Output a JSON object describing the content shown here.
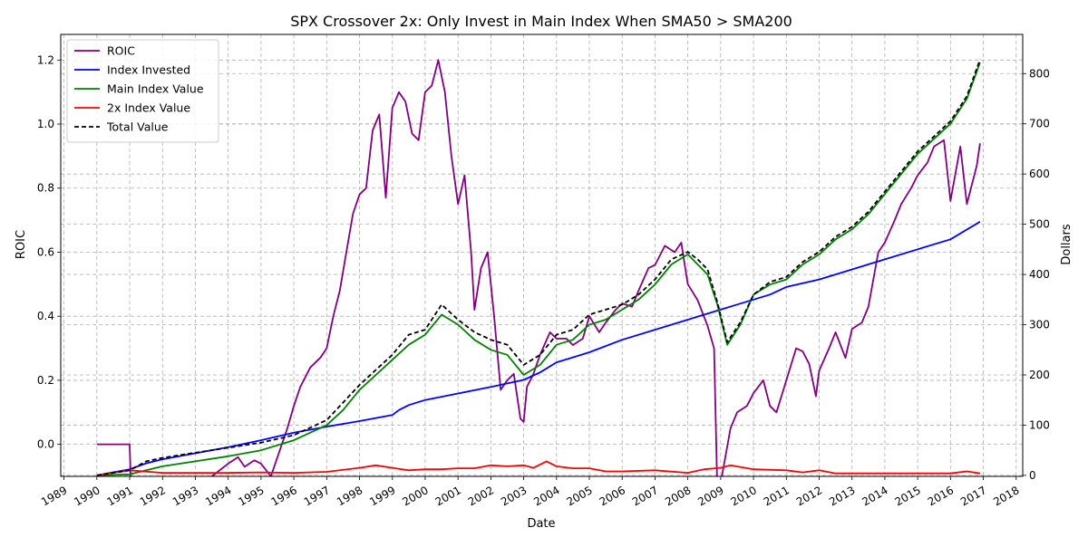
{
  "chart_data": {
    "type": "line",
    "title": "SPX Crossover 2x: Only Invest in Main Index When SMA50 > SMA200",
    "xlabel": "Date",
    "ylabel_left": "ROIC",
    "ylabel_right": "Dollars",
    "x_ticks": [
      "1989",
      "1990",
      "1991",
      "1992",
      "1993",
      "1994",
      "1995",
      "1996",
      "1997",
      "1998",
      "1999",
      "2000",
      "2001",
      "2002",
      "2003",
      "2004",
      "2005",
      "2006",
      "2007",
      "2008",
      "2009",
      "2010",
      "2011",
      "2012",
      "2013",
      "2014",
      "2015",
      "2016",
      "2017",
      "2018"
    ],
    "x_range": [
      1988.9,
      2018.2
    ],
    "y_left_ticks": [
      "0.0",
      "0.2",
      "0.4",
      "0.6",
      "0.8",
      "1.0",
      "1.2"
    ],
    "y_left_range": [
      -0.1,
      1.28
    ],
    "y_right_ticks": [
      "0",
      "100",
      "200",
      "300",
      "400",
      "500",
      "600",
      "700",
      "800"
    ],
    "y_right_range": [
      -2,
      878
    ],
    "grid": true,
    "legend_position": "top-left",
    "series": [
      {
        "name": "ROIC",
        "axis": "left",
        "color": "#800080",
        "dash": false,
        "x": [
          1990.0,
          1991.0,
          1991.05,
          1992.0,
          1993.0,
          1993.5,
          1994.0,
          1994.3,
          1994.5,
          1994.8,
          1995.0,
          1995.3,
          1995.5,
          1995.8,
          1996.0,
          1996.2,
          1996.5,
          1996.8,
          1997.0,
          1997.2,
          1997.4,
          1997.6,
          1997.8,
          1998.0,
          1998.2,
          1998.4,
          1998.6,
          1998.8,
          1999.0,
          1999.2,
          1999.4,
          1999.6,
          1999.8,
          2000.0,
          2000.2,
          2000.4,
          2000.6,
          2000.8,
          2001.0,
          2001.2,
          2001.4,
          2001.5,
          2001.7,
          2001.9,
          2002.1,
          2002.3,
          2002.5,
          2002.7,
          2002.9,
          2003.0,
          2003.1,
          2003.3,
          2003.5,
          2003.8,
          2004.0,
          2004.3,
          2004.5,
          2004.8,
          2005.0,
          2005.3,
          2005.5,
          2005.8,
          2006.0,
          2006.3,
          2006.5,
          2006.8,
          2007.0,
          2007.3,
          2007.6,
          2007.8,
          2008.0,
          2008.3,
          2008.6,
          2008.8,
          2008.9,
          2009.0,
          2009.3,
          2009.5,
          2009.8,
          2010.0,
          2010.3,
          2010.5,
          2010.7,
          2011.0,
          2011.3,
          2011.5,
          2011.7,
          2011.9,
          2012.0,
          2012.3,
          2012.5,
          2012.8,
          2013.0,
          2013.3,
          2013.5,
          2013.8,
          2014.0,
          2014.3,
          2014.5,
          2014.8,
          2015.0,
          2015.3,
          2015.5,
          2015.8,
          2016.0,
          2016.3,
          2016.5,
          2016.8,
          2016.9
        ],
        "y": [
          0.0,
          0.0,
          -0.18,
          -0.15,
          -0.13,
          -0.1,
          -0.06,
          -0.04,
          -0.07,
          -0.05,
          -0.06,
          -0.1,
          -0.04,
          0.05,
          0.12,
          0.18,
          0.24,
          0.27,
          0.3,
          0.4,
          0.48,
          0.6,
          0.72,
          0.78,
          0.8,
          0.98,
          1.03,
          0.77,
          1.05,
          1.1,
          1.07,
          0.97,
          0.95,
          1.1,
          1.12,
          1.2,
          1.1,
          0.9,
          0.75,
          0.84,
          0.6,
          0.42,
          0.55,
          0.6,
          0.4,
          0.17,
          0.2,
          0.22,
          0.08,
          0.07,
          0.18,
          0.22,
          0.28,
          0.35,
          0.33,
          0.33,
          0.31,
          0.33,
          0.4,
          0.35,
          0.38,
          0.42,
          0.44,
          0.43,
          0.48,
          0.55,
          0.56,
          0.62,
          0.6,
          0.63,
          0.5,
          0.45,
          0.37,
          0.3,
          -0.15,
          -0.12,
          0.05,
          0.1,
          0.12,
          0.16,
          0.2,
          0.12,
          0.1,
          0.2,
          0.3,
          0.29,
          0.25,
          0.15,
          0.23,
          0.3,
          0.35,
          0.27,
          0.36,
          0.38,
          0.43,
          0.6,
          0.63,
          0.7,
          0.75,
          0.8,
          0.84,
          0.88,
          0.93,
          0.95,
          0.76,
          0.93,
          0.75,
          0.87,
          0.94
        ],
        "ylim_clip": true
      },
      {
        "name": "Index Invested",
        "axis": "right",
        "color": "#0000ff",
        "dash": false,
        "x": [
          1990.0,
          1991.0,
          1991.5,
          1992.0,
          1993.0,
          1994.0,
          1995.0,
          1996.0,
          1997.0,
          1998.0,
          1999.0,
          1999.2,
          1999.5,
          2000.0,
          2001.0,
          2002.0,
          2003.0,
          2003.5,
          2004.0,
          2004.5,
          2005.0,
          2006.0,
          2007.0,
          2008.0,
          2009.0,
          2009.5,
          2010.0,
          2010.5,
          2011.0,
          2012.0,
          2013.0,
          2014.0,
          2015.0,
          2016.0,
          2016.9
        ],
        "y": [
          0,
          12,
          24,
          32,
          44,
          56,
          70,
          85,
          97,
          108,
          120,
          130,
          140,
          150,
          163,
          176,
          190,
          205,
          225,
          235,
          245,
          270,
          290,
          310,
          330,
          340,
          350,
          360,
          375,
          390,
          410,
          430,
          450,
          470,
          505
        ]
      },
      {
        "name": "Main Index Value",
        "axis": "right",
        "color": "#008000",
        "dash": false,
        "x": [
          1990.0,
          1991.0,
          1991.5,
          1992.0,
          1993.0,
          1994.0,
          1995.0,
          1996.0,
          1997.0,
          1997.5,
          1998.0,
          1998.5,
          1999.0,
          1999.5,
          2000.0,
          2000.5,
          2001.0,
          2001.5,
          2002.0,
          2002.5,
          2003.0,
          2003.5,
          2004.0,
          2004.5,
          2005.0,
          2005.5,
          2006.0,
          2006.5,
          2007.0,
          2007.5,
          2008.0,
          2008.3,
          2008.6,
          2008.9,
          2009.2,
          2009.6,
          2010.0,
          2010.5,
          2011.0,
          2011.5,
          2012.0,
          2012.5,
          2013.0,
          2013.5,
          2014.0,
          2014.5,
          2015.0,
          2015.5,
          2016.0,
          2016.5,
          2016.9
        ],
        "y": [
          0,
          2,
          10,
          18,
          28,
          38,
          50,
          70,
          100,
          130,
          170,
          200,
          230,
          260,
          280,
          320,
          300,
          270,
          250,
          240,
          200,
          220,
          260,
          270,
          300,
          310,
          330,
          350,
          380,
          420,
          440,
          420,
          400,
          340,
          260,
          300,
          360,
          380,
          390,
          420,
          440,
          470,
          490,
          520,
          560,
          600,
          640,
          670,
          700,
          750,
          822
        ]
      },
      {
        "name": "2x Index Value",
        "axis": "right",
        "color": "#ff0000",
        "dash": false,
        "x": [
          1990.0,
          1991.0,
          1992.0,
          1993.0,
          1994.0,
          1995.0,
          1996.0,
          1997.0,
          1998.0,
          1998.5,
          1999.0,
          1999.5,
          2000.0,
          2000.5,
          2001.0,
          2001.5,
          2002.0,
          2002.5,
          2003.0,
          2003.3,
          2003.7,
          2004.0,
          2004.5,
          2005.0,
          2005.5,
          2006.0,
          2007.0,
          2008.0,
          2008.5,
          2009.0,
          2009.3,
          2010.0,
          2011.0,
          2011.5,
          2012.0,
          2012.5,
          2013.0,
          2014.0,
          2015.0,
          2016.0,
          2016.5,
          2016.9
        ],
        "y": [
          0,
          10,
          5,
          5,
          5,
          6,
          5,
          7,
          15,
          20,
          15,
          10,
          12,
          12,
          14,
          14,
          20,
          18,
          20,
          15,
          28,
          18,
          14,
          14,
          8,
          8,
          10,
          5,
          12,
          15,
          20,
          12,
          10,
          6,
          10,
          4,
          4,
          4,
          4,
          4,
          8,
          4
        ]
      },
      {
        "name": "Total Value",
        "axis": "right",
        "color": "#000000",
        "dash": true,
        "x": [
          1990.0,
          1991.0,
          1991.5,
          1992.0,
          1993.0,
          1994.0,
          1995.0,
          1996.0,
          1997.0,
          1997.5,
          1998.0,
          1998.5,
          1999.0,
          1999.5,
          2000.0,
          2000.5,
          2001.0,
          2001.5,
          2002.0,
          2002.5,
          2003.0,
          2003.5,
          2004.0,
          2004.5,
          2005.0,
          2005.5,
          2006.0,
          2006.5,
          2007.0,
          2007.5,
          2008.0,
          2008.3,
          2008.6,
          2008.9,
          2009.2,
          2009.6,
          2010.0,
          2010.5,
          2011.0,
          2011.5,
          2012.0,
          2012.5,
          2013.0,
          2013.5,
          2014.0,
          2014.5,
          2015.0,
          2015.5,
          2016.0,
          2016.5,
          2016.9
        ],
        "y": [
          0,
          10,
          28,
          35,
          45,
          55,
          65,
          80,
          110,
          145,
          180,
          210,
          240,
          280,
          290,
          340,
          310,
          285,
          270,
          260,
          220,
          240,
          280,
          290,
          320,
          330,
          340,
          360,
          390,
          430,
          445,
          430,
          410,
          345,
          265,
          305,
          360,
          385,
          395,
          425,
          445,
          475,
          495,
          525,
          565,
          605,
          645,
          675,
          705,
          755,
          828
        ]
      }
    ]
  }
}
